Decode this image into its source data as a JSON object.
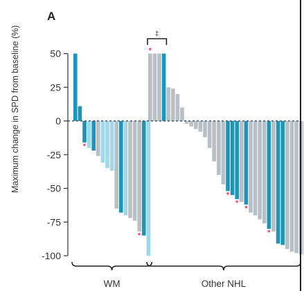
{
  "panel_label": "A",
  "colors": {
    "bar_blue": "#1a96bd",
    "bar_lightblue": "#9fd8ea",
    "bar_grey": "#b8bfc5",
    "asterisk": "#e23a6a",
    "zero_line": "#445566",
    "axis": "#333333"
  },
  "chart_data": {
    "type": "bar",
    "title": "",
    "ylabel": "Maximum change in SPD from baseline (%)",
    "xlabel": "",
    "ylim": [
      -100,
      50
    ],
    "yticks": [
      50,
      25,
      0,
      -25,
      -50,
      -75,
      -100
    ],
    "grid": false,
    "groups": [
      {
        "name": "WM",
        "bars": [
          {
            "value": 50,
            "color": "blue"
          },
          {
            "value": 11,
            "color": "blue"
          },
          {
            "value": -16,
            "color": "blue",
            "star": true
          },
          {
            "value": -20,
            "color": "lightblue"
          },
          {
            "value": -22,
            "color": "blue"
          },
          {
            "value": -26,
            "color": "grey"
          },
          {
            "value": -31,
            "color": "lightblue"
          },
          {
            "value": -35,
            "color": "lightblue"
          },
          {
            "value": -37,
            "color": "lightblue"
          },
          {
            "value": -65,
            "color": "grey"
          },
          {
            "value": -68,
            "color": "blue"
          },
          {
            "value": -70,
            "color": "lightblue"
          },
          {
            "value": -72,
            "color": "grey"
          },
          {
            "value": -74,
            "color": "grey"
          },
          {
            "value": -82,
            "color": "grey",
            "star": true
          },
          {
            "value": -85,
            "color": "blue"
          },
          {
            "value": -100,
            "color": "lightblue"
          }
        ]
      },
      {
        "name": "Other NHL",
        "bars": [
          {
            "value": 50,
            "color": "grey",
            "star": true
          },
          {
            "value": 50,
            "color": "grey"
          },
          {
            "value": 50,
            "color": "grey"
          },
          {
            "value": 50,
            "color": "blue"
          },
          {
            "value": 25,
            "color": "grey"
          },
          {
            "value": 24,
            "color": "grey"
          },
          {
            "value": 20,
            "color": "grey"
          },
          {
            "value": 10,
            "color": "grey"
          },
          {
            "value": -2,
            "color": "grey"
          },
          {
            "value": -4,
            "color": "grey"
          },
          {
            "value": -6,
            "color": "grey"
          },
          {
            "value": -8,
            "color": "grey"
          },
          {
            "value": -12,
            "color": "grey"
          },
          {
            "value": -20,
            "color": "grey"
          },
          {
            "value": -30,
            "color": "grey"
          },
          {
            "value": -40,
            "color": "grey"
          },
          {
            "value": -47,
            "color": "grey"
          },
          {
            "value": -52,
            "color": "blue",
            "star": true
          },
          {
            "value": -55,
            "color": "blue"
          },
          {
            "value": -58,
            "color": "blue",
            "star": true
          },
          {
            "value": -60,
            "color": "grey"
          },
          {
            "value": -62,
            "color": "blue",
            "star": true
          },
          {
            "value": -68,
            "color": "grey"
          },
          {
            "value": -70,
            "color": "grey"
          },
          {
            "value": -73,
            "color": "grey"
          },
          {
            "value": -76,
            "color": "grey"
          },
          {
            "value": -80,
            "color": "blue",
            "star": true
          },
          {
            "value": -82,
            "color": "grey"
          },
          {
            "value": -91,
            "color": "blue"
          },
          {
            "value": -92,
            "color": "blue"
          },
          {
            "value": -95,
            "color": "grey"
          },
          {
            "value": -97,
            "color": "grey"
          },
          {
            "value": -98,
            "color": "grey"
          },
          {
            "value": -99,
            "color": "grey"
          },
          {
            "value": -100,
            "color": "grey"
          }
        ]
      }
    ],
    "annotations": [
      {
        "text": "‡",
        "group": "Other NHL",
        "bars": [
          0,
          3
        ]
      },
      {
        "text": "*",
        "meaning": "asterisk-marked bars"
      }
    ]
  }
}
